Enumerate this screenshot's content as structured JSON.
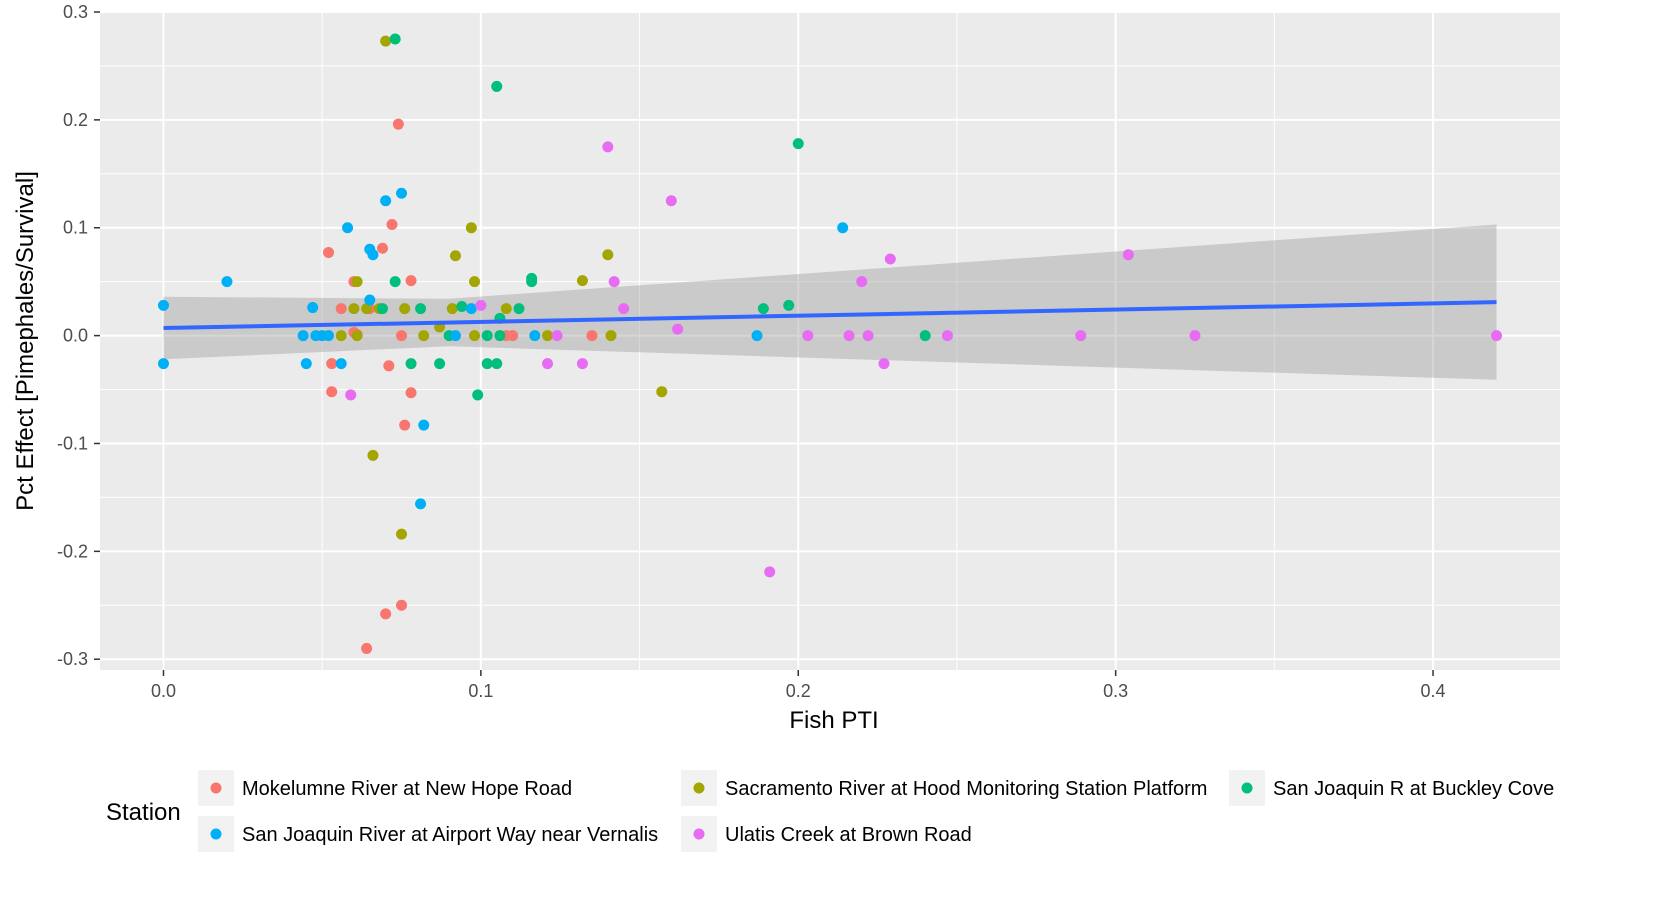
{
  "chart_data": {
    "type": "scatter",
    "title": "",
    "xlabel": "Fish PTI",
    "ylabel": "Pct Effect [Pimephales/Survival]",
    "xlim": [
      -0.02,
      0.44
    ],
    "ylim": [
      -0.31,
      0.3
    ],
    "x_ticks": [
      0.0,
      0.1,
      0.2,
      0.3,
      0.4
    ],
    "x_tick_labels": [
      "0.0",
      "0.1",
      "0.2",
      "0.3",
      "0.4"
    ],
    "y_ticks": [
      -0.3,
      -0.2,
      -0.1,
      0.0,
      0.1,
      0.2,
      0.3
    ],
    "y_tick_labels": [
      "-0.3",
      "-0.2",
      "-0.1",
      "0.0",
      "0.1",
      "0.2",
      "0.3"
    ],
    "grid": true,
    "legend": {
      "title": "Station",
      "position": "bottom"
    },
    "series": [
      {
        "name": "Mokelumne River at New Hope Road",
        "color": "#F8766D",
        "points": [
          [
            0.052,
            0.077
          ],
          [
            0.06,
            0.05
          ],
          [
            0.069,
            0.081
          ],
          [
            0.072,
            0.103
          ],
          [
            0.074,
            0.196
          ],
          [
            0.078,
            0.051
          ],
          [
            0.056,
            0.025
          ],
          [
            0.065,
            0.025
          ],
          [
            0.06,
            0.003
          ],
          [
            0.061,
            0.001
          ],
          [
            0.075,
            0.0
          ],
          [
            0.053,
            -0.026
          ],
          [
            0.071,
            -0.028
          ],
          [
            0.053,
            -0.052
          ],
          [
            0.078,
            -0.053
          ],
          [
            0.076,
            -0.083
          ],
          [
            0.07,
            -0.258
          ],
          [
            0.075,
            -0.25
          ],
          [
            0.064,
            -0.29
          ],
          [
            0.108,
            0.0
          ],
          [
            0.11,
            0.0
          ],
          [
            0.135,
            0.0
          ]
        ]
      },
      {
        "name": "Sacramento River at Hood Monitoring Station Platform",
        "color": "#A3A500",
        "points": [
          [
            0.07,
            0.273
          ],
          [
            0.061,
            0.05
          ],
          [
            0.06,
            0.025
          ],
          [
            0.064,
            0.025
          ],
          [
            0.068,
            0.025
          ],
          [
            0.076,
            0.025
          ],
          [
            0.056,
            0.0
          ],
          [
            0.061,
            0.0
          ],
          [
            0.082,
            0.0
          ],
          [
            0.087,
            0.008
          ],
          [
            0.092,
            0.074
          ],
          [
            0.097,
            0.1
          ],
          [
            0.098,
            0.05
          ],
          [
            0.091,
            0.025
          ],
          [
            0.098,
            0.0
          ],
          [
            0.108,
            0.025
          ],
          [
            0.121,
            0.0
          ],
          [
            0.132,
            0.051
          ],
          [
            0.14,
            0.075
          ],
          [
            0.141,
            0.0
          ],
          [
            0.157,
            -0.052
          ],
          [
            0.066,
            -0.111
          ],
          [
            0.075,
            -0.184
          ]
        ]
      },
      {
        "name": "San Joaquin R at Buckley Cove",
        "color": "#00BF7D",
        "points": [
          [
            0.073,
            0.275
          ],
          [
            0.105,
            0.231
          ],
          [
            0.2,
            0.178
          ],
          [
            0.116,
            0.053
          ],
          [
            0.116,
            0.05
          ],
          [
            0.073,
            0.05
          ],
          [
            0.069,
            0.025
          ],
          [
            0.081,
            0.025
          ],
          [
            0.094,
            0.027
          ],
          [
            0.112,
            0.025
          ],
          [
            0.106,
            0.016
          ],
          [
            0.09,
            0.0
          ],
          [
            0.102,
            0.0
          ],
          [
            0.106,
            0.0
          ],
          [
            0.078,
            -0.026
          ],
          [
            0.087,
            -0.026
          ],
          [
            0.102,
            -0.026
          ],
          [
            0.105,
            -0.026
          ],
          [
            0.099,
            -0.055
          ],
          [
            0.189,
            0.025
          ],
          [
            0.197,
            0.028
          ],
          [
            0.24,
            0.0
          ]
        ]
      },
      {
        "name": "San Joaquin River at Airport Way near Vernalis",
        "color": "#00B0F6",
        "points": [
          [
            0.0,
            0.028
          ],
          [
            0.0,
            -0.026
          ],
          [
            0.02,
            0.05
          ],
          [
            0.047,
            0.026
          ],
          [
            0.044,
            0.0
          ],
          [
            0.048,
            0.0
          ],
          [
            0.05,
            0.0
          ],
          [
            0.052,
            0.0
          ],
          [
            0.045,
            -0.026
          ],
          [
            0.056,
            -0.026
          ],
          [
            0.058,
            0.1
          ],
          [
            0.065,
            0.08
          ],
          [
            0.066,
            0.075
          ],
          [
            0.065,
            0.033
          ],
          [
            0.07,
            0.125
          ],
          [
            0.075,
            0.132
          ],
          [
            0.092,
            0.0
          ],
          [
            0.097,
            0.025
          ],
          [
            0.117,
            0.0
          ],
          [
            0.082,
            -0.083
          ],
          [
            0.081,
            -0.156
          ],
          [
            0.187,
            0.0
          ],
          [
            0.214,
            0.1
          ]
        ]
      },
      {
        "name": "Ulatis Creek at Brown Road",
        "color": "#E76BF3",
        "points": [
          [
            0.059,
            -0.055
          ],
          [
            0.1,
            0.028
          ],
          [
            0.121,
            -0.026
          ],
          [
            0.124,
            0.0
          ],
          [
            0.132,
            -0.026
          ],
          [
            0.14,
            0.175
          ],
          [
            0.142,
            0.05
          ],
          [
            0.145,
            0.025
          ],
          [
            0.16,
            0.125
          ],
          [
            0.162,
            0.006
          ],
          [
            0.191,
            -0.219
          ],
          [
            0.203,
            0.0
          ],
          [
            0.216,
            0.0
          ],
          [
            0.22,
            0.05
          ],
          [
            0.222,
            0.0
          ],
          [
            0.227,
            -0.026
          ],
          [
            0.229,
            0.071
          ],
          [
            0.247,
            0.0
          ],
          [
            0.289,
            0.0
          ],
          [
            0.304,
            0.075
          ],
          [
            0.325,
            0.0
          ],
          [
            0.42,
            0.0
          ]
        ]
      }
    ],
    "trend": {
      "method": "linear regression",
      "color": "#3366FF",
      "x": [
        0.0,
        0.42
      ],
      "y": [
        0.007,
        0.031
      ],
      "ci_lower": [
        -0.022,
        -0.041
      ],
      "ci_upper": [
        0.036,
        0.103
      ],
      "ci_pivot": {
        "x": 0.09,
        "y": 0.012
      },
      "ci_color": "#999999"
    }
  }
}
